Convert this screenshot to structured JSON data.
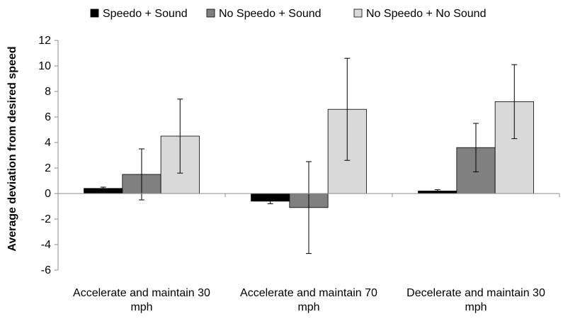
{
  "chart_data": {
    "type": "bar",
    "categories": [
      [
        "Accelerate and maintain 30",
        "mph"
      ],
      [
        "Accelerate and maintain 70",
        "mph"
      ],
      [
        "Decelerate and maintain 30",
        "mph"
      ]
    ],
    "series": [
      {
        "name": "Speedo + Sound",
        "color": "#000000",
        "values": [
          0.4,
          -0.6,
          0.2
        ],
        "errors": [
          0.1,
          0.2,
          0.1
        ]
      },
      {
        "name": "No Speedo + Sound",
        "color": "#808080",
        "values": [
          1.5,
          -1.1,
          3.6
        ],
        "errors": [
          2.0,
          3.6,
          1.9
        ]
      },
      {
        "name": "No Speedo + No Sound",
        "color": "#d9d9d9",
        "values": [
          4.5,
          6.6,
          7.2
        ],
        "errors": [
          2.9,
          4.0,
          2.9
        ]
      }
    ],
    "ylabel": "Average deviation from desired speed",
    "ylim": [
      -6,
      12
    ],
    "yticks": [
      -6,
      -4,
      -2,
      0,
      2,
      4,
      6,
      8,
      10,
      12
    ],
    "legend_position": "top",
    "grid": false
  }
}
